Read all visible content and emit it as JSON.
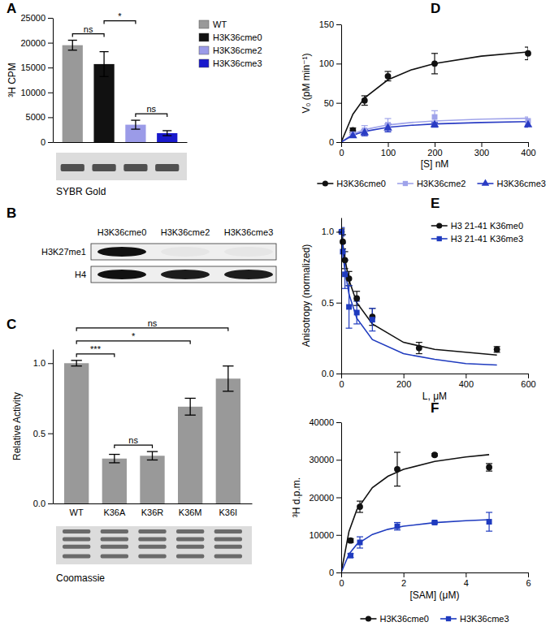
{
  "chart_data": [
    {
      "type": "bar",
      "panel": "A",
      "y_label": "³H CPM",
      "categories": [
        "WT",
        "H3K36cme0",
        "H3K36cme2",
        "H3K36cme3"
      ],
      "values": [
        19500,
        15700,
        3500,
        1800
      ],
      "errors": [
        1000,
        2500,
        900,
        500
      ],
      "colors": [
        "#999999",
        "#111111",
        "#9b9be8",
        "#1a1acc"
      ],
      "ylim": [
        0,
        25000
      ],
      "yticks": [
        0,
        5000,
        10000,
        15000,
        20000,
        25000
      ],
      "tick_labels": "y",
      "legend": "right",
      "annotations": [
        {
          "text": "ns",
          "between": [
            "WT",
            "H3K36cme0"
          ]
        },
        {
          "text": "ns",
          "between": [
            "H3K36cme2",
            "H3K36cme3"
          ]
        },
        {
          "text": "*",
          "between": [
            "H3K36cme0",
            "H3K36cme2"
          ]
        }
      ],
      "gel": "SYBR Gold"
    },
    {
      "type": "blot",
      "panel": "B",
      "lanes": [
        "H3K36cme0",
        "H3K36cme2",
        "H3K36cme3"
      ],
      "rows": [
        "H3K27me1",
        "H4"
      ],
      "intensity": [
        [
          1,
          0.04,
          0.04
        ],
        [
          1,
          0.95,
          0.95
        ]
      ]
    },
    {
      "type": "bar",
      "panel": "C",
      "y_label": "Relative Activity",
      "categories": [
        "WT",
        "K36A",
        "K36R",
        "K36M",
        "K36I"
      ],
      "values": [
        1.0,
        0.32,
        0.34,
        0.69,
        0.89
      ],
      "errors": [
        0.02,
        0.03,
        0.03,
        0.06,
        0.09
      ],
      "color": "#999999",
      "ylim": [
        0,
        1.1
      ],
      "yticks": [
        {
          "value": 0,
          "label": "0.0"
        },
        {
          "value": 0.5,
          "label": "0.5"
        },
        {
          "value": 1,
          "label": "1.0"
        }
      ],
      "annotations": [
        {
          "text": "***",
          "between": [
            "WT",
            "K36A"
          ]
        },
        {
          "text": "ns",
          "between": [
            "K36A",
            "K36R"
          ]
        },
        {
          "text": "*",
          "between": [
            "WT",
            "K36M"
          ]
        },
        {
          "text": "ns",
          "between": [
            "WT",
            "K36I"
          ]
        }
      ],
      "gel": "Coomassie"
    },
    {
      "type": "scatter",
      "panel": "D",
      "x_label": "[S] nM",
      "y_label": "V₀ (pM min⁻¹)",
      "xlim": [
        0,
        400
      ],
      "xticks": [
        0,
        100,
        200,
        300,
        400
      ],
      "ylim": [
        0,
        150
      ],
      "yticks": [
        0,
        50,
        100,
        150
      ],
      "legend": "bottom",
      "series": [
        {
          "name": "H3K36cme0",
          "color": "#111111",
          "marker": "circle",
          "x": [
            25,
            50,
            100,
            200,
            400
          ],
          "values": [
            15,
            53,
            84,
            100,
            113
          ],
          "errors": [
            3,
            6,
            6,
            13,
            8
          ],
          "fit": {
            "x": [
              0,
              25,
              50,
              100,
              150,
              200,
              300,
              400
            ],
            "values": [
              0,
              35.5,
              56.3,
              79.4,
              92,
              100,
              109.5,
              114.9
            ]
          }
        },
        {
          "name": "H3K36cme2",
          "color": "#9fa3ea",
          "marker": "square",
          "x": [
            25,
            50,
            100,
            200,
            400
          ],
          "values": [
            10,
            15,
            22,
            32,
            27
          ],
          "errors": [
            4,
            6,
            8,
            8,
            5
          ],
          "fit": {
            "x": [
              0,
              25,
              50,
              100,
              150,
              200,
              300,
              400
            ],
            "values": [
              0,
              10.3,
              15.9,
              21.9,
              25,
              26.9,
              29.2,
              30.4
            ]
          }
        },
        {
          "name": "H3K36cme3",
          "color": "#2a3cc4",
          "marker": "triangle",
          "x": [
            25,
            50,
            100,
            200,
            400
          ],
          "values": [
            8,
            12,
            18,
            22,
            22
          ],
          "errors": [
            2,
            4,
            5,
            3,
            3
          ],
          "fit": {
            "x": [
              0,
              25,
              50,
              100,
              150,
              200,
              300,
              400
            ],
            "values": [
              0,
              8.8,
              13.6,
              18.8,
              21.4,
              23.1,
              25,
              26.1
            ]
          }
        }
      ]
    },
    {
      "type": "scatter",
      "panel": "E",
      "x_label": "L, μM",
      "y_label": "Anisotropy (normalized)",
      "xlim": [
        0,
        600
      ],
      "xticks": [
        0,
        200,
        400,
        600
      ],
      "ylim": [
        0,
        1.1
      ],
      "yticks": [
        {
          "value": 0,
          "label": "0.0"
        },
        {
          "value": 0.5,
          "label": "0.5"
        },
        {
          "value": 1,
          "label": "1.0"
        }
      ],
      "legend": "top-right",
      "series": [
        {
          "name": "H3 21-41 K36me0",
          "color": "#111111",
          "marker": "circle",
          "x": [
            1,
            5,
            12,
            25,
            50,
            100,
            250,
            500
          ],
          "values": [
            1.0,
            0.93,
            0.8,
            0.67,
            0.53,
            0.4,
            0.18,
            0.17
          ],
          "errors": [
            0.02,
            0.05,
            0.06,
            0.05,
            0.05,
            0.06,
            0.04,
            0.02
          ],
          "fit": {
            "x": [
              0,
              10,
              25,
              50,
              100,
              200,
              300,
              400,
              500
            ],
            "values": [
              1,
              0.83,
              0.66,
              0.5,
              0.35,
              0.22,
              0.17,
              0.15,
              0.13
            ]
          }
        },
        {
          "name": "H3 21-41 K36me3",
          "color": "#1f3bbf",
          "marker": "square",
          "x": [
            1,
            5,
            12,
            25,
            50,
            100
          ],
          "values": [
            1.0,
            0.86,
            0.7,
            0.47,
            0.43,
            0.38
          ],
          "errors": [
            0.03,
            0.06,
            0.1,
            0.15,
            0.08,
            0.08
          ],
          "fit": {
            "x": [
              0,
              10,
              25,
              50,
              100,
              200,
              300,
              400,
              500
            ],
            "values": [
              1,
              0.76,
              0.56,
              0.39,
              0.24,
              0.14,
              0.1,
              0.07,
              0.06
            ]
          }
        }
      ]
    },
    {
      "type": "scatter",
      "panel": "F",
      "x_label": "[SAM] (μM)",
      "y_label": "³H d.p.m.",
      "xlim": [
        0,
        6
      ],
      "xticks": [
        0,
        2,
        4,
        6
      ],
      "ylim": [
        0,
        40000
      ],
      "yticks": [
        0,
        10000,
        20000,
        30000,
        40000
      ],
      "legend": "bottom",
      "series": [
        {
          "name": "H3K36cme0",
          "color": "#111111",
          "marker": "circle",
          "x": [
            0.3,
            0.6,
            1.8,
            3,
            4.75
          ],
          "values": [
            8500,
            17500,
            27500,
            31300,
            28000
          ],
          "errors": [
            500,
            1500,
            4500,
            300,
            1000
          ],
          "fit": {
            "x": [
              0,
              0.25,
              0.5,
              1,
              1.5,
              2,
              3,
              4,
              4.75
            ],
            "values": [
              0,
              10940,
              16670,
              22580,
              25610,
              27450,
              29580,
              30770,
              31370
            ]
          }
        },
        {
          "name": "H3K36cme3",
          "color": "#1f3bbf",
          "marker": "square",
          "x": [
            0.3,
            0.6,
            1.8,
            3,
            4.75
          ],
          "values": [
            4500,
            8000,
            12300,
            13300,
            13500
          ],
          "errors": [
            500,
            1500,
            1000,
            300,
            2500
          ],
          "fit": {
            "x": [
              0,
              0.25,
              0.5,
              1,
              1.5,
              2,
              3,
              4,
              4.75
            ],
            "values": [
              0,
              4910,
              7480,
              10130,
              11490,
              12310,
              13270,
              13800,
              14070
            ]
          }
        }
      ]
    }
  ]
}
